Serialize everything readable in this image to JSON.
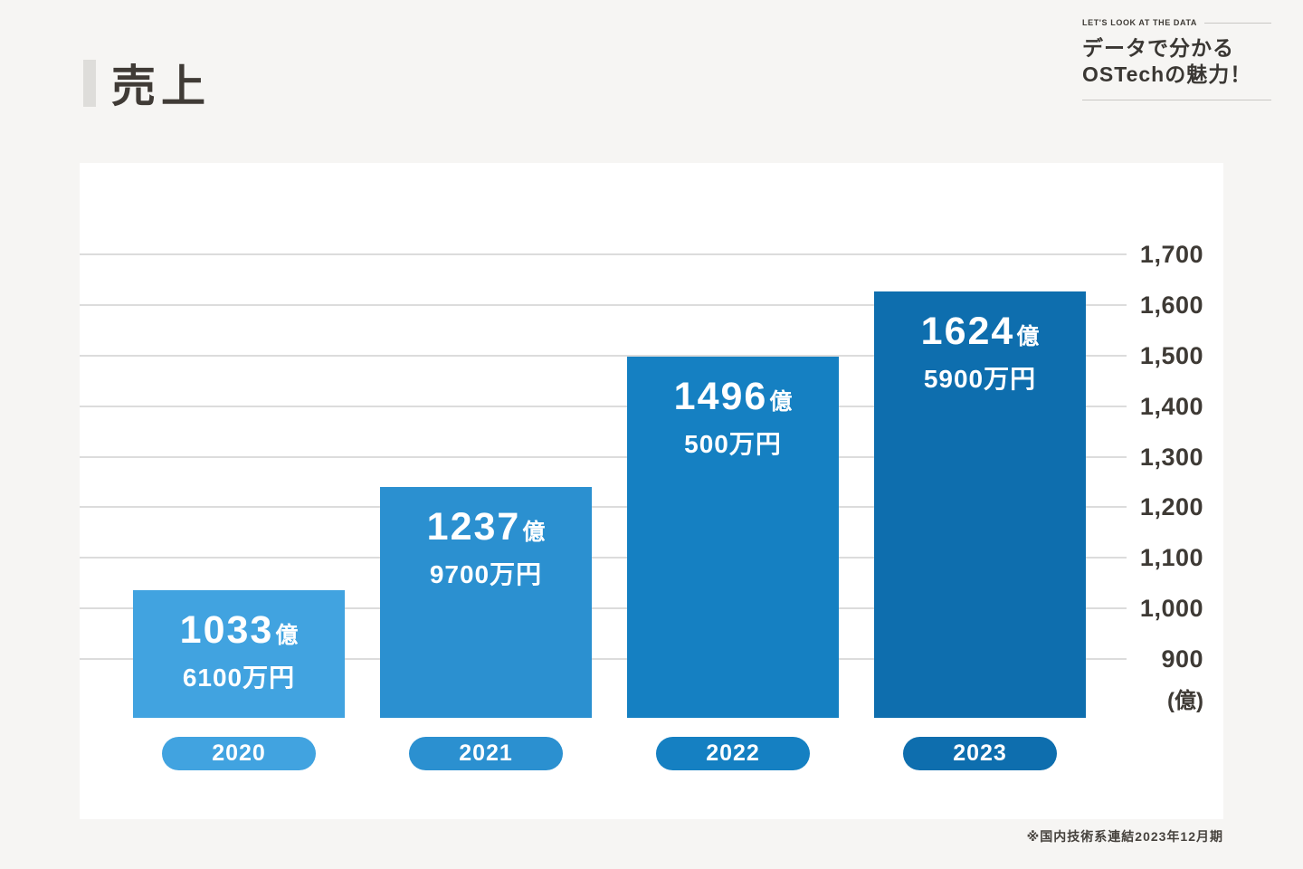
{
  "header": {
    "title": "売上",
    "eyebrow": "LET'S LOOK AT THE DATA",
    "tagline_line1": "データで分かる",
    "tagline_line2": "OSTechの魅力！"
  },
  "footnote": "※国内技術系連結2023年12月期",
  "chart_data": {
    "type": "bar",
    "title": "売上",
    "categories": [
      "2020",
      "2021",
      "2022",
      "2023"
    ],
    "values": [
      1033.61,
      1237.97,
      1496.05,
      1624.59
    ],
    "values_unit": "億円",
    "value_labels": [
      {
        "main": "1033",
        "unit": "億",
        "sub": "6100万円"
      },
      {
        "main": "1237",
        "unit": "億",
        "sub": "9700万円"
      },
      {
        "main": "1496",
        "unit": "億",
        "sub": "500万円"
      },
      {
        "main": "1624",
        "unit": "億",
        "sub": "5900万円"
      }
    ],
    "bar_colors": [
      "#41a3e0",
      "#2b90d0",
      "#1580c2",
      "#0e6eae"
    ],
    "yticks": [
      1700,
      1600,
      1500,
      1400,
      1300,
      1200,
      1100,
      1000,
      900
    ],
    "ytick_labels": [
      "1,700",
      "1,600",
      "1,500",
      "1,400",
      "1,300",
      "1,200",
      "1,100",
      "1,000",
      "900"
    ],
    "y_axis_unit": "(億)",
    "ylim": [
      780,
      1700
    ],
    "grid": true,
    "legend_position": "none"
  }
}
